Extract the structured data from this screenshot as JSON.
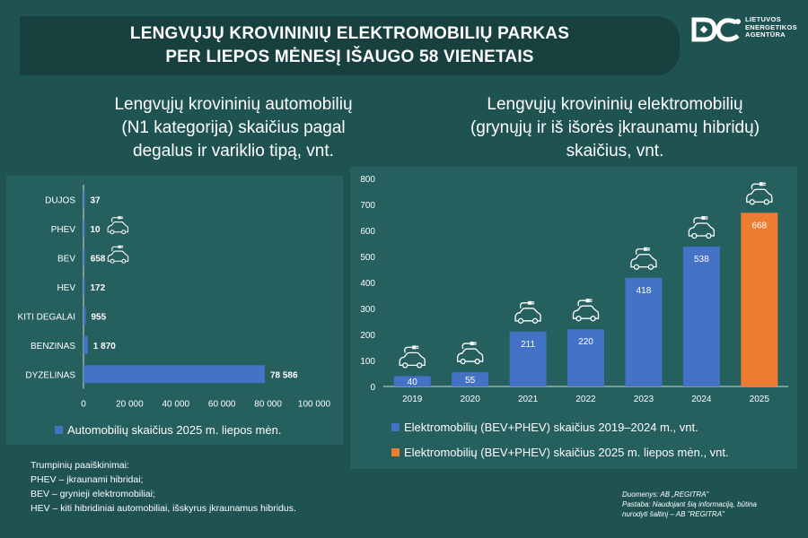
{
  "header": {
    "title_line1": "LENGVŲJŲ KROVININIŲ ELEKTROMOBILIŲ PARKAS",
    "title_line2": "PER LIEPOS MĖNESĮ IŠAUGO 58 VIENETAIS"
  },
  "logo": {
    "line1": "LIETUVOS",
    "line2": "ENERGETIKOS",
    "line3": "AGENTŪRA"
  },
  "colors": {
    "background": "#1f5352",
    "panel": "#255f5e",
    "banner": "#17403f",
    "bar_blue": "#4472c4",
    "bar_orange": "#ed7d31"
  },
  "chart_data": [
    {
      "type": "bar",
      "orientation": "horizontal",
      "title_lines": [
        "Lengvųjų krovininių automobilių",
        "(N1 kategorija) skaičius pagal",
        "degalus ir variklio tipą, vnt."
      ],
      "categories": [
        "DUJOS",
        "PHEV",
        "BEV",
        "HEV",
        "KITI DEGALAI",
        "BENZINAS",
        "DYZELINAS"
      ],
      "values": [
        37,
        10,
        658,
        172,
        955,
        1870,
        78586
      ],
      "value_labels": [
        "37",
        "10",
        "658",
        "172",
        "955",
        "1 870",
        "78 586"
      ],
      "icon_on": [
        "PHEV",
        "BEV"
      ],
      "xlim": [
        0,
        100000
      ],
      "xticks": [
        0,
        20000,
        40000,
        60000,
        80000,
        100000
      ],
      "xtick_labels": [
        "0",
        "20 000",
        "40 000",
        "60 000",
        "80 000",
        "100 000"
      ],
      "grid": false,
      "legend_position": "bottom",
      "series": [
        {
          "name": "Automobilių skaičius 2025 m. liepos mėn.",
          "color": "#4472c4"
        }
      ]
    },
    {
      "type": "bar",
      "orientation": "vertical",
      "title_lines": [
        "Lengvųjų krovininių elektromobilių",
        "(grynųjų ir iš išorės įkraunamų hibridų)",
        "skaičius, vnt."
      ],
      "categories": [
        "2019",
        "2020",
        "2021",
        "2022",
        "2023",
        "2024",
        "2025"
      ],
      "values": [
        40,
        55,
        211,
        220,
        418,
        538,
        668
      ],
      "bar_colors": [
        "#4472c4",
        "#4472c4",
        "#4472c4",
        "#4472c4",
        "#4472c4",
        "#4472c4",
        "#ed7d31"
      ],
      "ylim": [
        0,
        800
      ],
      "yticks": [
        0,
        100,
        200,
        300,
        400,
        500,
        600,
        700,
        800
      ],
      "grid": false,
      "legend_position": "bottom",
      "series": [
        {
          "name": "Elektromobilių (BEV+PHEV) skaičius 2019–2024 m., vnt.",
          "color": "#4472c4"
        },
        {
          "name": "Elektromobilių (BEV+PHEV) skaičius 2025 m. liepos mėn., vnt.",
          "color": "#ed7d31"
        }
      ]
    }
  ],
  "notes": {
    "heading": "Trumpinių paaiškinimai:",
    "lines": [
      "PHEV – įkraunami hibridai;",
      "BEV – grynieji elektromobiliai;",
      "HEV – kiti hibridiniai automobiliai, išskyrus įkraunamus hibridus."
    ]
  },
  "source": {
    "line1": "Duomenys: AB „REGITRA\"",
    "line2": "Pastaba: Naudojant šią informaciją, būtina",
    "line3": "nurodyti šaltinį – AB \"REGITRA\""
  }
}
